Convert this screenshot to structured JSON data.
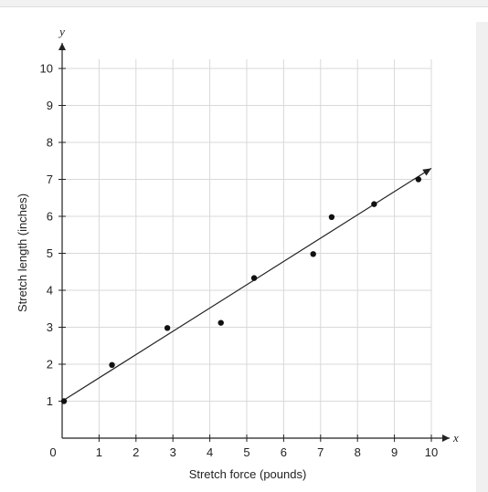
{
  "chart_data": {
    "type": "scatter",
    "xlabel": "Stretch force (pounds)",
    "ylabel": "Stretch length (inches)",
    "x_axis_var": "x",
    "y_axis_var": "y",
    "xlim": [
      0,
      10
    ],
    "ylim": [
      0,
      10
    ],
    "xticks": [
      "0",
      "1",
      "2",
      "3",
      "4",
      "5",
      "6",
      "7",
      "8",
      "9",
      "10"
    ],
    "yticks": [
      "1",
      "2",
      "3",
      "4",
      "5",
      "6",
      "7",
      "8",
      "9",
      "10"
    ],
    "grid": true,
    "points": [
      {
        "x": 0.05,
        "y": 1.0
      },
      {
        "x": 1.35,
        "y": 1.98
      },
      {
        "x": 2.85,
        "y": 2.98
      },
      {
        "x": 4.3,
        "y": 3.12
      },
      {
        "x": 5.2,
        "y": 4.33
      },
      {
        "x": 6.8,
        "y": 4.98
      },
      {
        "x": 7.3,
        "y": 5.98
      },
      {
        "x": 8.45,
        "y": 6.33
      },
      {
        "x": 9.65,
        "y": 7.0
      }
    ],
    "trend_line": {
      "x1": 0,
      "y1": 1.0,
      "x2": 10.0,
      "y2": 7.3
    },
    "colors": {
      "grid": "#d9d9d9",
      "axis": "#222222",
      "marker": "#111111"
    }
  }
}
